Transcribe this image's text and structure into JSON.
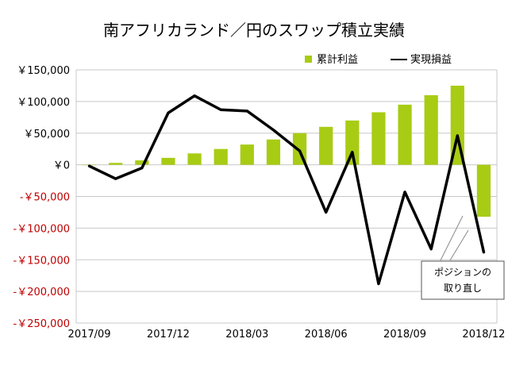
{
  "chart_data": {
    "type": "bar+line",
    "title": "南アフリカランド／円のスワップ積立実績",
    "categories": [
      "2017/09",
      "2017/10",
      "2017/11",
      "2017/12",
      "2018/01",
      "2018/02",
      "2018/03",
      "2018/04",
      "2018/05",
      "2018/06",
      "2018/07",
      "2018/08",
      "2018/09",
      "2018/10",
      "2018/11",
      "2018/12"
    ],
    "x_tick_labels": [
      "2017/09",
      "2017/12",
      "2018/03",
      "2018/06",
      "2018/09",
      "2018/12"
    ],
    "y_ticks": [
      150000,
      100000,
      50000,
      0,
      -50000,
      -100000,
      -150000,
      -200000,
      -250000
    ],
    "y_tick_labels": [
      "￥150,000",
      "￥100,000",
      "￥50,000",
      "￥0",
      "-￥50,000",
      "-￥100,000",
      "-￥150,000",
      "-￥200,000",
      "-￥250,000"
    ],
    "ylim": [
      -250000,
      150000
    ],
    "grid": true,
    "legend_position": "top-right",
    "series": [
      {
        "name": "累計利益",
        "kind": "bar",
        "color": "#a8cc14",
        "values": [
          0,
          3000,
          7000,
          11000,
          18000,
          25000,
          32000,
          40000,
          50000,
          60000,
          70000,
          83000,
          95000,
          110000,
          125000,
          -82000
        ]
      },
      {
        "name": "実現損益",
        "kind": "line",
        "color": "#000000",
        "values": [
          -2000,
          -22000,
          -5000,
          82000,
          109000,
          87000,
          85000,
          55000,
          22000,
          -75000,
          20000,
          -188000,
          -43000,
          -133000,
          46000,
          -138000
        ]
      }
    ],
    "annotation": {
      "lines": [
        "ポジションの",
        "取り直し"
      ]
    },
    "colors": {
      "negative_label": "#c00000",
      "positive_label": "#000000",
      "grid": "#c8c8c8"
    }
  }
}
